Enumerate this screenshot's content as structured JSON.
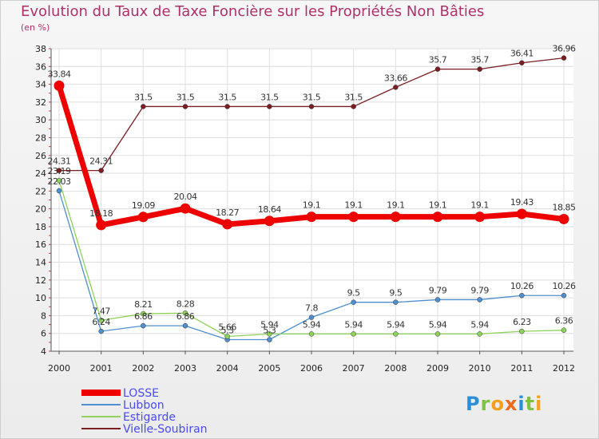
{
  "chart_data": {
    "type": "line",
    "title": "Evolution du Taux de Taxe Foncière sur les Propriétés Non Bâties",
    "ylabel": "(en %)",
    "xlabel": "",
    "categories": [
      "2000",
      "2001",
      "2002",
      "2003",
      "2004",
      "2005",
      "2006",
      "2007",
      "2008",
      "2009",
      "2010",
      "2011",
      "2012"
    ],
    "ylim": [
      4,
      38
    ],
    "yticks": [
      4,
      6,
      8,
      10,
      12,
      14,
      16,
      18,
      20,
      22,
      24,
      26,
      28,
      30,
      32,
      34,
      36,
      38
    ],
    "grid": true,
    "legend_position": "bottom-left",
    "series": [
      {
        "name": "Vielle-Soubiran",
        "color": "#7a1e22",
        "values": [
          24.31,
          24.31,
          31.5,
          31.5,
          31.5,
          31.5,
          31.5,
          31.5,
          33.66,
          35.7,
          35.7,
          36.41,
          36.96
        ],
        "labels": [
          "24.31",
          "24.31",
          "31.5",
          "31.5",
          "31.5",
          "31.5",
          "31.5",
          "31.5",
          "33.66",
          "35.7",
          "35.7",
          "36.41",
          "36.96"
        ]
      },
      {
        "name": "Lubbon",
        "color": "#4f8fd0",
        "values": [
          22.03,
          6.24,
          6.86,
          6.86,
          5.3,
          5.3,
          7.8,
          9.5,
          9.5,
          9.79,
          9.79,
          10.26,
          10.26
        ],
        "labels": [
          "22.03",
          "6.24",
          "6.86",
          "6.86",
          "5.3",
          "5.3",
          "7.8",
          "9.5",
          "9.5",
          "9.79",
          "9.79",
          "10.26",
          "10.26"
        ]
      },
      {
        "name": "Estigarde",
        "color": "#8ed35a",
        "values": [
          23.19,
          7.47,
          8.21,
          8.28,
          5.66,
          5.94,
          5.94,
          5.94,
          5.94,
          5.94,
          5.94,
          6.23,
          6.36
        ],
        "labels": [
          "23.19",
          "7.47",
          "8.21",
          "8.28",
          "5.66",
          "5.94",
          "5.94",
          "5.94",
          "5.94",
          "5.94",
          "5.94",
          "6.23",
          "6.36"
        ]
      },
      {
        "name": "LOSSE",
        "color": "#ee0000",
        "values": [
          33.84,
          18.18,
          19.09,
          20.04,
          18.27,
          18.64,
          19.1,
          19.1,
          19.1,
          19.1,
          19.1,
          19.43,
          18.85
        ],
        "labels": [
          "33.84",
          "18.18",
          "19.09",
          "20.04",
          "18.27",
          "18.64",
          "19.1",
          "19.1",
          "19.1",
          "19.1",
          "19.1",
          "19.43",
          "18.85"
        ]
      }
    ],
    "legend": [
      "LOSSE",
      "Lubbon",
      "Estigarde",
      "Vielle-Soubiran"
    ]
  },
  "logo": {
    "text": "Proxiti",
    "letters": [
      "P",
      "r",
      "o",
      "x",
      "i",
      "t",
      "i"
    ],
    "colors": [
      "#2a8fd8",
      "#7cc243",
      "#f3a01d",
      "#ef6a1a",
      "#2a8fd8",
      "#7cc243",
      "#f3a01d"
    ]
  }
}
